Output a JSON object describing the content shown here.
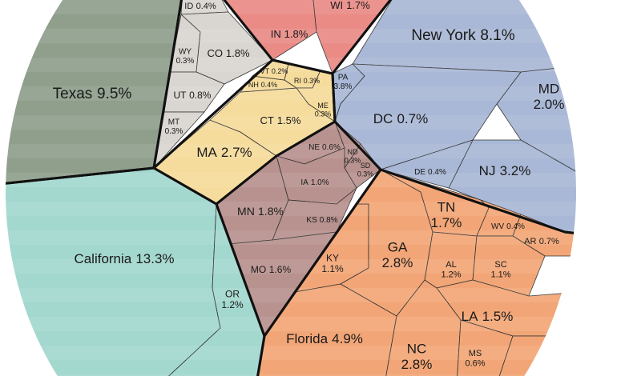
{
  "chart_data": {
    "type": "voronoi",
    "groups": [
      {
        "color": "#8f9f8c",
        "labels": [
          "Texas"
        ],
        "values": [
          9.5
        ],
        "value_labels": [
          "9.5%"
        ]
      },
      {
        "color": "#d9d5d0",
        "labels": [
          "ID",
          "WY",
          "CO",
          "UT",
          "MT"
        ],
        "values": [
          0.4,
          0.3,
          1.8,
          0.8,
          0.3
        ],
        "value_labels": [
          "0.4%",
          "0.3%",
          "1.8%",
          "0.8%",
          "0.3%"
        ]
      },
      {
        "color": "#ea8b86",
        "labels": [
          "IN",
          "WI"
        ],
        "values": [
          1.8,
          1.7
        ],
        "value_labels": [
          "1.8%",
          "1.7%"
        ]
      },
      {
        "color": "#a9b8d6",
        "labels": [
          "New York",
          "MD",
          "PA",
          "DC",
          "NJ",
          "DE"
        ],
        "values": [
          8.1,
          2.0,
          3.8,
          0.7,
          3.2,
          0.4
        ],
        "value_labels": [
          "8.1%",
          "2.0%",
          "3.8%",
          "0.7%",
          "3.2%",
          "0.4%"
        ]
      },
      {
        "color": "#f6dc9c",
        "labels": [
          "MA",
          "CT",
          "NH",
          "VT",
          "RI",
          "ME"
        ],
        "values": [
          2.7,
          1.5,
          0.4,
          0.2,
          0.3,
          0.3
        ],
        "value_labels": [
          "2.7%",
          "1.5%",
          "0.4%",
          "0.2%",
          "0.3%",
          "0.3%"
        ]
      },
      {
        "color": "#b8928f",
        "labels": [
          "NE",
          "ND",
          "SD",
          "IA",
          "MN",
          "KS",
          "MO"
        ],
        "values": [
          0.6,
          0.3,
          0.3,
          1.0,
          1.8,
          0.8,
          1.6
        ],
        "value_labels": [
          "0.6%",
          "0.3%",
          "0.3%",
          "1.0%",
          "1.8%",
          "0.8%",
          "1.6%"
        ]
      },
      {
        "color": "#a3d8cf",
        "labels": [
          "California",
          "OR"
        ],
        "values": [
          13.3,
          1.2
        ],
        "value_labels": [
          "13.3%",
          "1.2%"
        ]
      },
      {
        "color": "#f2a677",
        "labels": [
          "KY",
          "Florida",
          "GA",
          "TN",
          "WV",
          "AR",
          "AL",
          "SC",
          "LA",
          "NC",
          "MS"
        ],
        "values": [
          1.1,
          4.9,
          2.8,
          1.7,
          0.4,
          0.7,
          1.2,
          1.1,
          1.5,
          2.8,
          0.6
        ],
        "value_labels": [
          "1.1%",
          "4.9%",
          "2.8%",
          "1.7%",
          "0.4%",
          "0.7%",
          "1.2%",
          "1.1%",
          "1.5%",
          "2.8%",
          "0.6%"
        ]
      }
    ]
  }
}
